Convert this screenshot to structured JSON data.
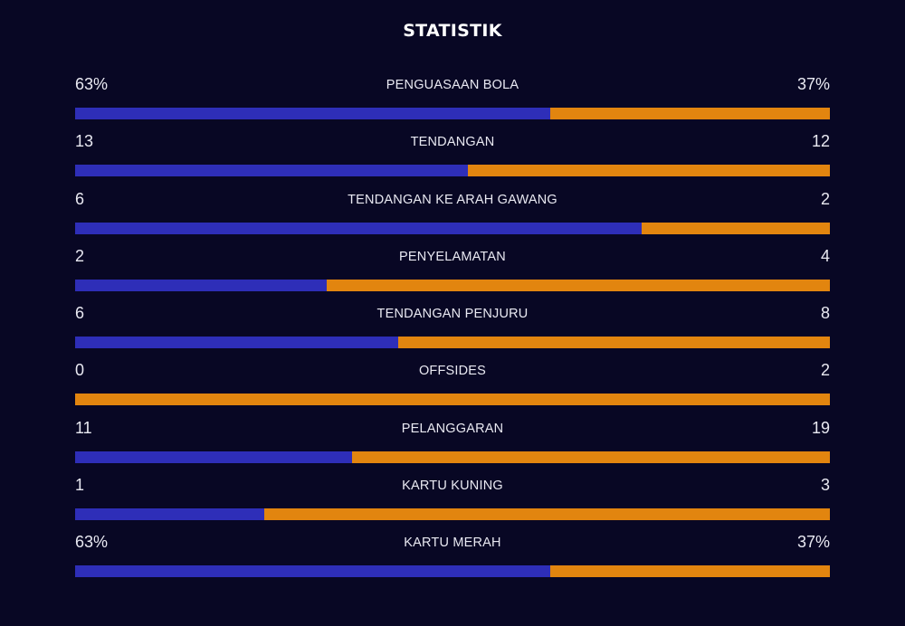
{
  "header": {
    "title": "STATISTIK"
  },
  "colors": {
    "home": "#2e2eb8",
    "away": "#e2850f",
    "background": "#080724"
  },
  "chart_data": {
    "type": "bar",
    "title": "STATISTIK",
    "orientation": "horizontal-stacked",
    "categories": [
      "PENGUASAAN BOLA",
      "TENDANGAN",
      "TENDANGAN KE ARAH GAWANG",
      "PENYELAMATAN",
      "TENDANGAN PENJURU",
      "OFFSIDES",
      "PELANGGARAN",
      "KARTU KUNING",
      "KARTU MERAH"
    ],
    "rows": [
      {
        "label": "PENGUASAAN BOLA",
        "left": "63%",
        "right": "37%",
        "left_value": 63,
        "right_value": 37
      },
      {
        "label": "TENDANGAN",
        "left": "13",
        "right": "12",
        "left_value": 13,
        "right_value": 12
      },
      {
        "label": "TENDANGAN KE ARAH GAWANG",
        "left": "6",
        "right": "2",
        "left_value": 6,
        "right_value": 2
      },
      {
        "label": "PENYELAMATAN",
        "left": "2",
        "right": "4",
        "left_value": 2,
        "right_value": 4
      },
      {
        "label": "TENDANGAN PENJURU",
        "left": "6",
        "right": "8",
        "left_value": 6,
        "right_value": 8
      },
      {
        "label": "OFFSIDES",
        "left": "0",
        "right": "2",
        "left_value": 0,
        "right_value": 2
      },
      {
        "label": "PELANGGARAN",
        "left": "11",
        "right": "19",
        "left_value": 11,
        "right_value": 19
      },
      {
        "label": "KARTU KUNING",
        "left": "1",
        "right": "3",
        "left_value": 1,
        "right_value": 3
      },
      {
        "label": "KARTU MERAH",
        "left": "63%",
        "right": "37%",
        "left_value": 63,
        "right_value": 37
      }
    ]
  }
}
